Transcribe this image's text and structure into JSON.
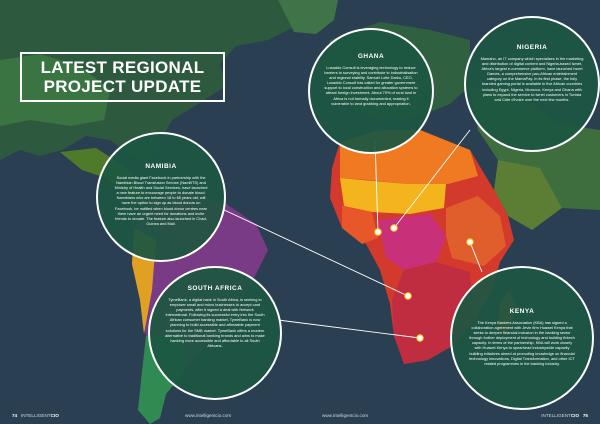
{
  "title": {
    "line1": "LATEST REGIONAL",
    "line2": "PROJECT UPDATE"
  },
  "colors": {
    "ocean": "#2a3f52",
    "bubble": "#1c5642",
    "connector": "#ffffff",
    "marker": "#ffd21a"
  },
  "regions": {
    "ghana": {
      "title": "GHANA",
      "body": "Lusaddo Consult is leveraging technology to reduce barriers to surveying and contribute to industrialisation and regional stability. Samuel Lotte Darko, CEO, Lusaddo Consult has called for greater government support to local construction and allocation systems to attract foreign investment. About 70% of rural land in Africa is not formally documented, making it vulnerable to land grabbing and appropriation."
    },
    "nigeria": {
      "title": "NIGERIA",
      "body": "Mamaho, an IT company which specialises in the marketing and distribution of digital content and Nigeria-based Iwnet, Africa's largest e-commerce platform, have launched Iwnet Games, a comprehensive pan-African entertainment category on the MamaPay. In its first phase, the fully branded gaming portal is available in five African countries including Egypt, Nigeria, Morocco, Kenya and Ghana with plans to expand the service to Iwnet customers in Tunisia and Côte d'Ivoire over the next few months."
    },
    "namibia": {
      "title": "NAMIBIA",
      "body": "Social media giant Facebook in partnership with the Namibian Blood Transfusion Service (NamBTS) and Ministry of Health and Social Services, have launched a new feature to encourage people to donate blood. Namibians who are between 18 to 65 years old, will have the option to sign up as blood donors on Facebook, be notified when blood donor centres near them have an urgent need for donations and invite friends to donate. The feature also launched in Chad, Guinea and Mali."
    },
    "south_africa": {
      "title": "SOUTH AFRICA",
      "body": "TymeBank, a digital bank in South Africa, is seeking to empower small and micro businesses to accept card payments, after it signed a deal with Network International. Following its successful entry into the South African consumer banking market, TymeBank is now planning to build accessible and affordable payment solutions for the SMB market. TymeBank offers a modern alternative to traditional banking brands and aims to make banking more accessible and affordable to all South Africans."
    },
    "kenya": {
      "title": "KENYA",
      "body": "The Kenya Bankers Association (KBA) has signed a collaboration agreement with Jevin firm Huawei Kenya that seeks to deepen financial inclusion in the banking sector through further deployment of technology and building fintech capacity. In terms of the partnership, KBA will work closely with Huawei Kenya to spearhead industrywide capacity building initiatives aimed at promoting knowledge on financial technology innovations, Digital Transformation, and other ICT related programmes in the banking industry."
    }
  },
  "footer": {
    "left_page": "74",
    "left_brand_a": "INTELLIGENT",
    "left_brand_b": "CIO",
    "left_url": "www.intelligentcio.com",
    "right_url": "www.intelligentcio.com",
    "right_brand_a": "INTELLIGENT",
    "right_brand_b": "CIO",
    "right_page": "75"
  }
}
